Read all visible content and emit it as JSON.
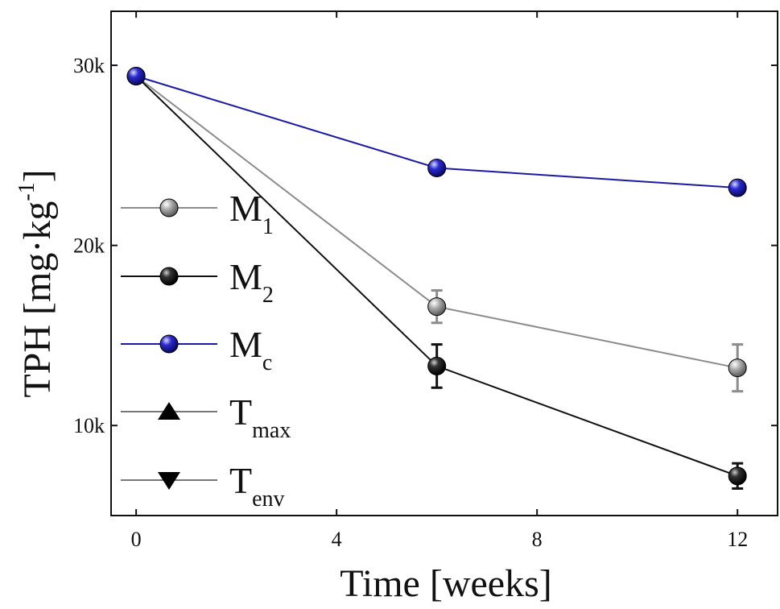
{
  "chart_data": {
    "type": "line",
    "xlabel": "Time [weeks]",
    "ylabel": "TPH [mg·kg",
    "ylabel_sup": "-1",
    "ylabel_close": "]",
    "xlim": [
      -0.5,
      12.8
    ],
    "ylim": [
      5000,
      33000
    ],
    "xticks": [
      0,
      4,
      8,
      12
    ],
    "xtick_labels": [
      "0",
      "4",
      "8",
      "12"
    ],
    "yticks": [
      10000,
      20000,
      30000
    ],
    "ytick_labels": [
      "10k",
      "20k",
      "30k"
    ],
    "grid": false,
    "legend_position": "left",
    "series": [
      {
        "name": "M",
        "sub": "1",
        "color": "#8c8c8c",
        "marker": "sphere",
        "x": [
          0,
          6,
          12
        ],
        "y": [
          29400,
          16600,
          13200
        ],
        "err": [
          0,
          900,
          1300
        ]
      },
      {
        "name": "M",
        "sub": "2",
        "color": "#111111",
        "marker": "sphere",
        "x": [
          0,
          6,
          12
        ],
        "y": [
          29400,
          13300,
          7200
        ],
        "err": [
          0,
          1200,
          700
        ]
      },
      {
        "name": "M",
        "sub": "c",
        "color": "#1a1aa6",
        "marker": "sphere",
        "x": [
          0,
          6,
          12
        ],
        "y": [
          29400,
          24300,
          23200
        ],
        "err": [
          0,
          0,
          0
        ]
      },
      {
        "name": "T",
        "sub": "max",
        "color": "#111111",
        "marker": "triangle-up",
        "x": [],
        "y": [],
        "err": []
      },
      {
        "name": "T",
        "sub": "env",
        "color": "#111111",
        "marker": "triangle-down",
        "x": [],
        "y": [],
        "err": []
      }
    ]
  }
}
